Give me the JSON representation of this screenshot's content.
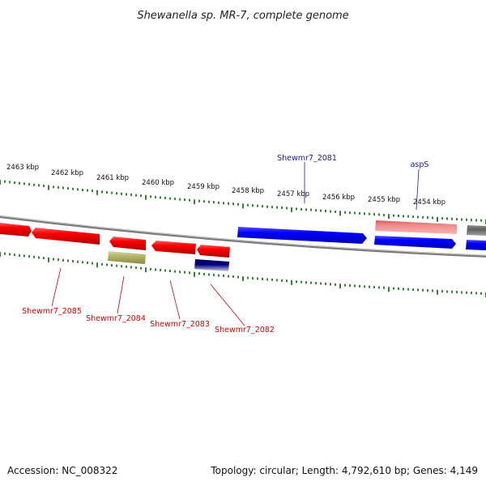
{
  "title": "Shewanella sp. MR-7, complete genome",
  "footer": {
    "accession": "Accession: NC_008322",
    "summary": "Topology: circular; Length: 4,792,610 bp; Genes: 4,149"
  },
  "scale_labels": [
    "2463 kbp",
    "2462 kbp",
    "2461 kbp",
    "2460 kbp",
    "2459 kbp",
    "2458 kbp",
    "2457 kbp",
    "2456 kbp",
    "2455 kbp",
    "2454 kbp"
  ],
  "gene_labels": {
    "top": [
      "Shewmr7_2081",
      "aspS"
    ],
    "bottom": [
      "Shewmr7_2085",
      "Shewmr7_2084",
      "Shewmr7_2083",
      "Shewmr7_2082"
    ]
  },
  "colors": {
    "cds_forward": "#ff0000",
    "cds_reverse": "#0000ff",
    "trna": "#f08080",
    "other_gene": "#b4b46a",
    "misc_feature": "#000080",
    "gray_feature": "#707070",
    "backbone": "#888888",
    "ticks": "#006400",
    "label_red": "#d40000",
    "label_blue": "#1a1aa0"
  }
}
